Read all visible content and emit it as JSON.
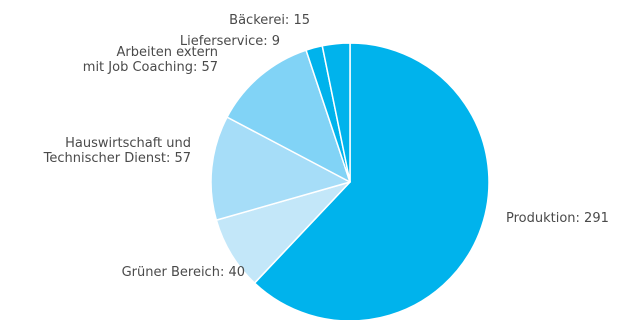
{
  "chart_data": {
    "type": "pie",
    "title": "",
    "start_angle_deg": 0,
    "direction": "clockwise",
    "slices": [
      {
        "label": "Produktion",
        "value": 291,
        "color": "#00B3EC"
      },
      {
        "label": "Grüner Bereich",
        "value": 40,
        "color": "#C3E7F9"
      },
      {
        "label": "Hauswirtschaft und Technischer Dienst",
        "value": 57,
        "color": "#A6DDF8"
      },
      {
        "label": "Arbeiten extern mit Job Coaching",
        "value": 57,
        "color": "#81D3F6"
      },
      {
        "label": "Lieferservice",
        "value": 9,
        "color": "#00B3EC"
      },
      {
        "label": "Bäckerei",
        "value": 15,
        "color": "#00B3EC"
      }
    ],
    "labels": [
      {
        "lines": [
          "Produktion: 291"
        ]
      },
      {
        "lines": [
          "Grüner Bereich: 40"
        ]
      },
      {
        "lines": [
          "Hauswirtschaft und",
          "Technischer Dienst: 57"
        ]
      },
      {
        "lines": [
          "Arbeiten extern",
          "mit Job Coaching: 57"
        ]
      },
      {
        "lines": [
          "Lieferservice: 9"
        ]
      },
      {
        "lines": [
          "Bäckerei: 15"
        ]
      }
    ]
  }
}
